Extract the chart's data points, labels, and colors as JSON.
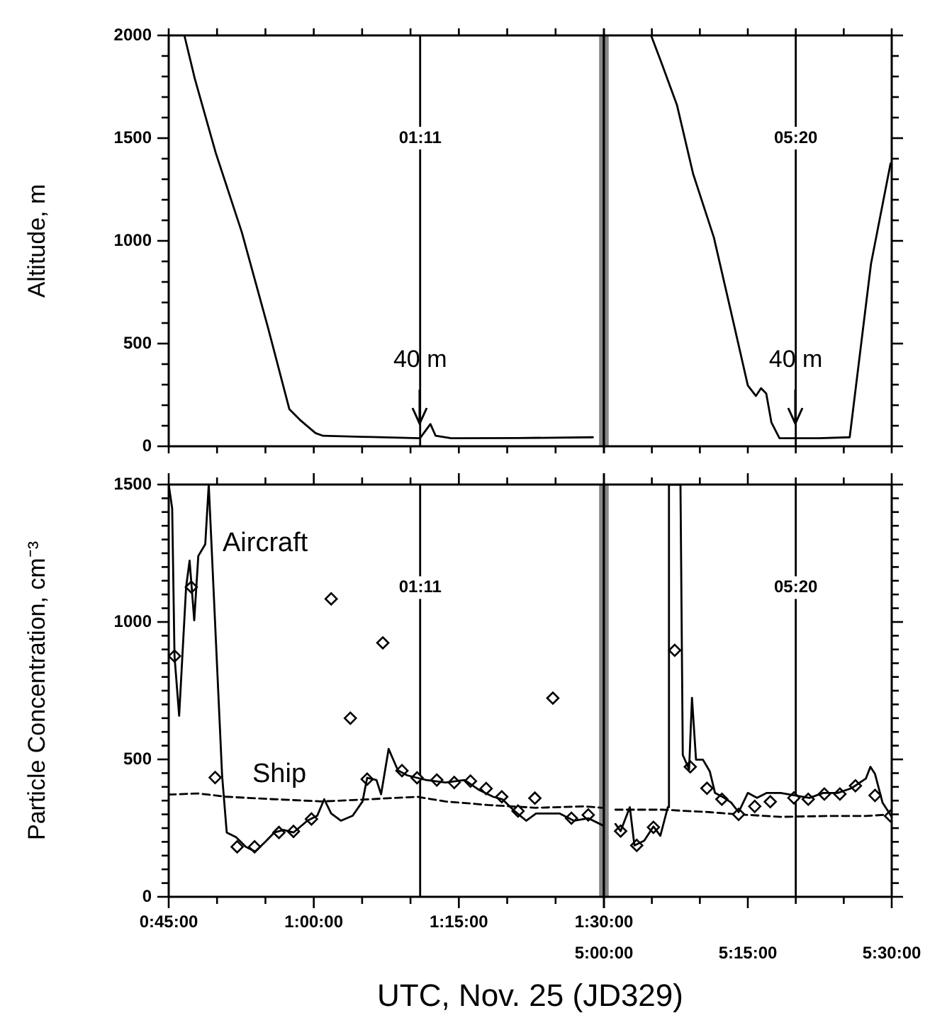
{
  "chart_data": [
    {
      "type": "line",
      "ylabel": "Altitude, m",
      "xlim": [
        0.75,
        1.5
      ],
      "ylim": [
        0,
        2000
      ],
      "tick_labels": "y",
      "xticks": [
        {
          "value": 0.75,
          "label": null
        },
        {
          "value": 0.8333,
          "label": null
        },
        {
          "value": 0.9167,
          "label": null
        },
        {
          "value": 1,
          "label": null
        },
        {
          "value": 1.0833,
          "label": null
        },
        {
          "value": 1.1667,
          "label": null
        },
        {
          "value": 1.25,
          "label": null
        },
        {
          "value": 1.3333,
          "label": null
        },
        {
          "value": 1.4167,
          "label": null
        },
        {
          "value": 1.5,
          "label": null
        }
      ],
      "yticks": [
        0,
        {
          "value": 100,
          "label": null
        },
        {
          "value": 200,
          "label": null
        },
        {
          "value": 300,
          "label": null
        },
        {
          "value": 400,
          "label": null
        },
        500,
        {
          "value": 600,
          "label": null
        },
        {
          "value": 700,
          "label": null
        },
        {
          "value": 800,
          "label": null
        },
        {
          "value": 900,
          "label": null
        },
        1000,
        {
          "value": 1100,
          "label": null
        },
        {
          "value": 1200,
          "label": null
        },
        {
          "value": 1300,
          "label": null
        },
        {
          "value": 1400,
          "label": null
        },
        1500,
        {
          "value": 1600,
          "label": null
        },
        {
          "value": 1700,
          "label": null
        },
        {
          "value": 1800,
          "label": null
        },
        {
          "value": 1900,
          "label": null
        },
        2000
      ],
      "ref_lines": [
        {
          "axis": "x",
          "value": 1.1833,
          "label": "01:11"
        }
      ],
      "bands": [
        {
          "axis": "x",
          "from": 1.4917,
          "to": 1.5,
          "color": "#888888"
        }
      ],
      "annotations": [
        {
          "text": "40 m",
          "x": 1.1833,
          "y": 40
        }
      ],
      "series": [
        {
          "color": "#000000",
          "marker": "none",
          "x": [
            0.777,
            0.795,
            0.831,
            0.876,
            0.921,
            0.958,
            0.976,
            1.003,
            1.016,
            1.1,
            1.183,
            1.201,
            1.21,
            1.237,
            1.35,
            1.481
          ],
          "values": [
            2000,
            1789,
            1429,
            1042,
            579,
            180,
            129,
            64,
            51,
            45,
            39,
            108,
            51,
            39,
            40,
            44
          ]
        }
      ]
    },
    {
      "type": "line",
      "xlim": [
        5,
        5.5
      ],
      "ylim": [
        0,
        2000
      ],
      "tick_labels": false,
      "xticks": [
        {
          "value": 5,
          "label": null
        },
        {
          "value": 5.0833,
          "label": null
        },
        {
          "value": 5.1667,
          "label": null
        },
        {
          "value": 5.25,
          "label": null
        },
        {
          "value": 5.3333,
          "label": null
        },
        {
          "value": 5.4167,
          "label": null
        },
        {
          "value": 5.5,
          "label": null
        }
      ],
      "yticks": [
        0,
        {
          "value": 100,
          "label": null
        },
        {
          "value": 200,
          "label": null
        },
        {
          "value": 300,
          "label": null
        },
        {
          "value": 400,
          "label": null
        },
        500,
        {
          "value": 600,
          "label": null
        },
        {
          "value": 700,
          "label": null
        },
        {
          "value": 800,
          "label": null
        },
        {
          "value": 900,
          "label": null
        },
        1000,
        {
          "value": 1100,
          "label": null
        },
        {
          "value": 1200,
          "label": null
        },
        {
          "value": 1300,
          "label": null
        },
        {
          "value": 1400,
          "label": null
        },
        1500,
        {
          "value": 1600,
          "label": null
        },
        {
          "value": 1700,
          "label": null
        },
        {
          "value": 1800,
          "label": null
        },
        {
          "value": 1900,
          "label": null
        },
        2000
      ],
      "ref_lines": [
        {
          "axis": "x",
          "value": 5.3333,
          "label": "05:20"
        }
      ],
      "bands": [
        {
          "axis": "x",
          "from": 5,
          "to": 5.0083,
          "color": "#888888"
        }
      ],
      "annotations": [
        {
          "text": "40 m",
          "x": 5.3333,
          "y": 40
        }
      ],
      "series": [
        {
          "color": "#000000",
          "marker": "none",
          "x": [
            5.082,
            5.1,
            5.127,
            5.155,
            5.191,
            5.227,
            5.25,
            5.264,
            5.273,
            5.282,
            5.291,
            5.305,
            5.373,
            5.427,
            5.464,
            5.498
          ],
          "values": [
            2000,
            1866,
            1660,
            1326,
            1017,
            579,
            296,
            245,
            283,
            257,
            116,
            39,
            39,
            44,
            888,
            1377
          ]
        }
      ]
    },
    {
      "type": "line",
      "ylabel": "Particle Concentration, cm⁻³",
      "xlabel": "UTC, Nov. 25 (JD329)",
      "xlim": [
        0.75,
        1.5
      ],
      "ylim": [
        0,
        1500
      ],
      "xticks": [
        {
          "value": 0.75,
          "label": "0:45:00"
        },
        {
          "value": 0.8333,
          "label": null
        },
        {
          "value": 0.9167,
          "label": null
        },
        {
          "value": 1,
          "label": "1:00:00"
        },
        {
          "value": 1.0833,
          "label": null
        },
        {
          "value": 1.1667,
          "label": null
        },
        {
          "value": 1.25,
          "label": "1:15:00"
        },
        {
          "value": 1.3333,
          "label": null
        },
        {
          "value": 1.4167,
          "label": null
        },
        {
          "value": 1.5,
          "label": "1:30:00"
        }
      ],
      "yticks": [
        0,
        {
          "value": 50,
          "label": null
        },
        {
          "value": 100,
          "label": null
        },
        {
          "value": 150,
          "label": null
        },
        {
          "value": 200,
          "label": null
        },
        {
          "value": 250,
          "label": null
        },
        {
          "value": 300,
          "label": null
        },
        {
          "value": 350,
          "label": null
        },
        {
          "value": 400,
          "label": null
        },
        {
          "value": 450,
          "label": null
        },
        500,
        {
          "value": 550,
          "label": null
        },
        {
          "value": 600,
          "label": null
        },
        {
          "value": 650,
          "label": null
        },
        {
          "value": 700,
          "label": null
        },
        {
          "value": 750,
          "label": null
        },
        {
          "value": 800,
          "label": null
        },
        {
          "value": 850,
          "label": null
        },
        {
          "value": 900,
          "label": null
        },
        {
          "value": 950,
          "label": null
        },
        1000,
        {
          "value": 1050,
          "label": null
        },
        {
          "value": 1100,
          "label": null
        },
        {
          "value": 1150,
          "label": null
        },
        {
          "value": 1200,
          "label": null
        },
        {
          "value": 1250,
          "label": null
        },
        {
          "value": 1300,
          "label": null
        },
        {
          "value": 1350,
          "label": null
        },
        {
          "value": 1400,
          "label": null
        },
        {
          "value": 1450,
          "label": null
        },
        1500
      ],
      "ref_lines": [
        {
          "axis": "x",
          "value": 1.1833,
          "label": "01:11"
        }
      ],
      "bands": [
        {
          "axis": "x",
          "from": 1.4917,
          "to": 1.5,
          "color": "#888888"
        }
      ],
      "series": [
        {
          "name": "Aircraft",
          "color": "#000000",
          "marker": "none",
          "x": [
            0.75,
            0.756,
            0.76,
            0.768,
            0.78,
            0.786,
            0.794,
            0.801,
            0.813,
            0.819,
            0.842,
            0.85,
            0.866,
            0.883,
            0.899,
            0.916,
            0.932,
            0.948,
            0.965,
            0.989,
            1.006,
            1.018,
            1.03,
            1.047,
            1.067,
            1.084,
            1.092,
            1.108,
            1.116,
            1.129,
            1.145,
            1.161,
            1.178,
            1.194,
            1.227,
            1.26,
            1.284,
            1.309,
            1.325,
            1.346,
            1.366,
            1.383,
            1.424,
            1.448,
            1.473,
            1.498
          ],
          "values": [
            1500,
            1413,
            876,
            659,
            1127,
            1223,
            1006,
            1240,
            1283,
            1500,
            442,
            234,
            217,
            182,
            165,
            199,
            234,
            243,
            234,
            277,
            295,
            355,
            303,
            277,
            295,
            347,
            433,
            425,
            373,
            538,
            460,
            442,
            433,
            425,
            416,
            425,
            390,
            364,
            355,
            312,
            277,
            303,
            303,
            277,
            286,
            260
          ]
        },
        {
          "type": "scatter",
          "color": "#000000",
          "marker": "diamond",
          "x": [
            0.76,
            0.789,
            0.83,
            0.868,
            0.898,
            0.94,
            0.965,
            0.996,
            1.03,
            1.063,
            1.092,
            1.119,
            1.152,
            1.178,
            1.212,
            1.242,
            1.27,
            1.297,
            1.324,
            1.352,
            1.381,
            1.412,
            1.444,
            1.473
          ],
          "values": [
            876,
            1127,
            434,
            182,
            182,
            234,
            238,
            283,
            1084,
            650,
            428,
            924,
            459,
            433,
            425,
            416,
            421,
            394,
            364,
            312,
            359,
            723,
            286,
            298
          ]
        },
        {
          "name": "Ship",
          "color": "#000000",
          "marker": "none",
          "line_style": "dashed",
          "x": [
            0.75,
            0.801,
            0.85,
            0.932,
            1.014,
            1.096,
            1.178,
            1.227,
            1.301,
            1.383,
            1.465,
            1.497
          ],
          "values": [
            372,
            376,
            364,
            355,
            347,
            355,
            364,
            347,
            334,
            324,
            329,
            324
          ]
        }
      ]
    },
    {
      "type": "line",
      "xlim": [
        5,
        5.5
      ],
      "ylim": [
        0,
        1500
      ],
      "tick_labels": "x",
      "xticks": [
        {
          "value": 5,
          "label": "5:00:00"
        },
        {
          "value": 5.0833,
          "label": null
        },
        {
          "value": 5.1667,
          "label": null
        },
        {
          "value": 5.25,
          "label": "5:15:00"
        },
        {
          "value": 5.3333,
          "label": null
        },
        {
          "value": 5.4167,
          "label": null
        },
        {
          "value": 5.5,
          "label": "5:30:00"
        }
      ],
      "yticks": [
        0,
        {
          "value": 50,
          "label": null
        },
        {
          "value": 100,
          "label": null
        },
        {
          "value": 150,
          "label": null
        },
        {
          "value": 200,
          "label": null
        },
        {
          "value": 250,
          "label": null
        },
        {
          "value": 300,
          "label": null
        },
        {
          "value": 350,
          "label": null
        },
        {
          "value": 400,
          "label": null
        },
        {
          "value": 450,
          "label": null
        },
        500,
        {
          "value": 550,
          "label": null
        },
        {
          "value": 600,
          "label": null
        },
        {
          "value": 650,
          "label": null
        },
        {
          "value": 700,
          "label": null
        },
        {
          "value": 750,
          "label": null
        },
        {
          "value": 800,
          "label": null
        },
        {
          "value": 850,
          "label": null
        },
        {
          "value": 900,
          "label": null
        },
        {
          "value": 950,
          "label": null
        },
        1000,
        {
          "value": 1050,
          "label": null
        },
        {
          "value": 1100,
          "label": null
        },
        {
          "value": 1150,
          "label": null
        },
        {
          "value": 1200,
          "label": null
        },
        {
          "value": 1250,
          "label": null
        },
        {
          "value": 1300,
          "label": null
        },
        {
          "value": 1350,
          "label": null
        },
        {
          "value": 1400,
          "label": null
        },
        {
          "value": 1450,
          "label": null
        },
        1500
      ],
      "ref_lines": [
        {
          "axis": "x",
          "value": 5.3333,
          "label": "05:20"
        }
      ],
      "bands": [
        {
          "axis": "x",
          "from": 5,
          "to": 5.0083,
          "color": "#888888"
        }
      ],
      "series": [
        {
          "color": "#000000",
          "marker": "none",
          "x": [
            5.02,
            5.029,
            5.045,
            5.053,
            5.07,
            5.086,
            5.098,
            5.111,
            5.113,
            5.133,
            5.137,
            5.148,
            5.153,
            5.16,
            5.172,
            5.184,
            5.193,
            5.209,
            5.221,
            5.234,
            5.25,
            5.266,
            5.283,
            5.307,
            5.332,
            5.357,
            5.381,
            5.406,
            5.43,
            5.455,
            5.463,
            5.471,
            5.484,
            5.5
          ],
          "values": [
            265,
            239,
            326,
            187,
            204,
            256,
            222,
            326,
            1500,
            1500,
            516,
            464,
            724,
            499,
            499,
            456,
            378,
            360,
            343,
            308,
            378,
            360,
            378,
            378,
            369,
            360,
            378,
            378,
            395,
            430,
            473,
            447,
            343,
            291
          ]
        },
        {
          "type": "scatter",
          "color": "#000000",
          "marker": "diamond",
          "x": [
            5.029,
            5.057,
            5.086,
            5.123,
            5.15,
            5.179,
            5.205,
            5.234,
            5.262,
            5.289,
            5.33,
            5.355,
            5.383,
            5.41,
            5.437,
            5.471,
            5.498
          ],
          "values": [
            239,
            187,
            253,
            897,
            473,
            395,
            355,
            300,
            329,
            346,
            360,
            355,
            374,
            374,
            404,
            369,
            294
          ]
        },
        {
          "color": "#000000",
          "marker": "none",
          "line_style": "dashed",
          "x": [
            5.02,
            5.102,
            5.184,
            5.234,
            5.307,
            5.389,
            5.455,
            5.5
          ],
          "values": [
            317,
            317,
            308,
            300,
            291,
            294,
            294,
            300
          ]
        }
      ]
    }
  ]
}
